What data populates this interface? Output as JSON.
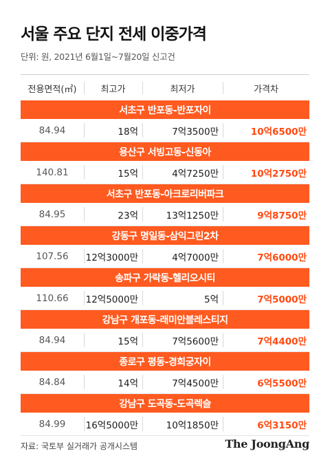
{
  "title": "서울 주요 단지 전세 이중가격",
  "unit_note": "단위: 원, 2021년 6월1일~7월20일 신고건",
  "columns": [
    "전용면적(㎡)",
    "최고가",
    "최저가",
    "가격차"
  ],
  "rows": [
    {
      "complex": "서초구 반포동-반포자이",
      "area": "84.94",
      "max": "18억",
      "min": "7억3500만",
      "diff": "10억6500만"
    },
    {
      "complex": "용산구 서빙고동-신동아",
      "area": "140.81",
      "max": "15억",
      "min": "4억7250만",
      "diff": "10억2750만"
    },
    {
      "complex": "서초구 반포동-아크로리버파크",
      "area": "84.95",
      "max": "23억",
      "min": "13억1250만",
      "diff": "9억8750만"
    },
    {
      "complex": "강동구 명일동-삼익그린2차",
      "area": "107.56",
      "max": "12억3000만",
      "min": "4억7000만",
      "diff": "7억6000만"
    },
    {
      "complex": "송파구 가락동-헬리오시티",
      "area": "110.66",
      "max": "12억5000만",
      "min": "5억",
      "diff": "7억5000만"
    },
    {
      "complex": "강남구 개포동-래미안블레스티지",
      "area": "84.94",
      "max": "15억",
      "min": "7억5600만",
      "diff": "7억4400만"
    },
    {
      "complex": "종로구 평동-경희궁자이",
      "area": "84.84",
      "max": "14억",
      "min": "7억4500만",
      "diff": "6억5500만"
    },
    {
      "complex": "강남구 도곡동-도곡렉슬",
      "area": "84.99",
      "max": "16억5000만",
      "min": "10억1850만",
      "diff": "6억3150만"
    }
  ],
  "source": "자료: 국토부 실거래가 공개시스템",
  "logo": "The JoongAng",
  "colors": {
    "accent": "#ff5a1f",
    "diff_text": "#ff4a10"
  }
}
